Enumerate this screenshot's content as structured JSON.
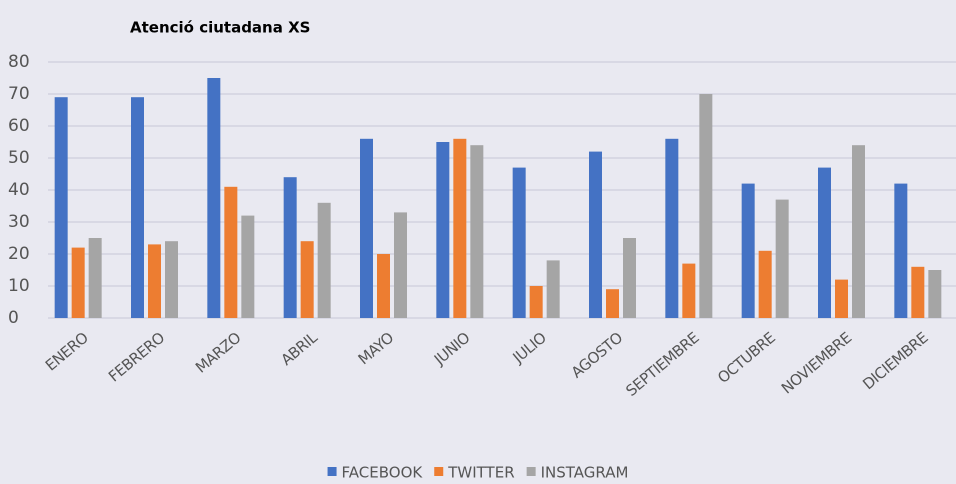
{
  "chart_data": {
    "type": "bar",
    "title": "Atenció ciutadana XS",
    "categories": [
      "ENERO",
      "FEBRERO",
      "MARZO",
      "ABRIL",
      "MAYO",
      "JUNIO",
      "JULIO",
      "AGOSTO",
      "SEPTIEMBRE",
      "OCTUBRE",
      "NOVIEMBRE",
      "DICIEMBRE"
    ],
    "series": [
      {
        "name": "FACEBOOK",
        "color": "#4472c4",
        "values": [
          69,
          69,
          75,
          44,
          56,
          55,
          47,
          52,
          56,
          42,
          47,
          42
        ]
      },
      {
        "name": "TWITTER",
        "color": "#ed7d31",
        "values": [
          22,
          23,
          41,
          24,
          20,
          56,
          10,
          9,
          17,
          21,
          12,
          16
        ]
      },
      {
        "name": "INSTAGRAM",
        "color": "#a5a5a5",
        "values": [
          25,
          24,
          32,
          36,
          33,
          54,
          18,
          25,
          70,
          37,
          54,
          15
        ]
      }
    ],
    "ylim": [
      0,
      80
    ],
    "yticks": [
      0,
      10,
      20,
      30,
      40,
      50,
      60,
      70,
      80
    ],
    "grid": true,
    "legend": "bottom"
  }
}
